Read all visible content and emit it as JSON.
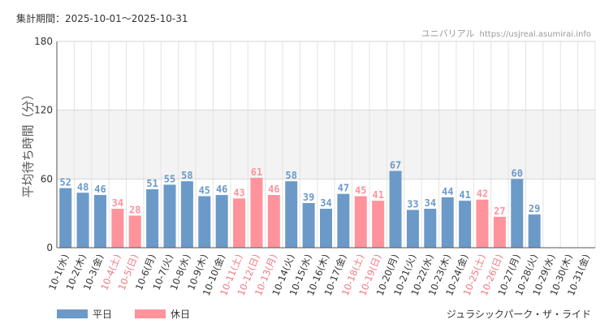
{
  "header": {
    "period": "集計期間：2025-10-01～2025-10-31",
    "site_name": "ユニバリアル",
    "site_url": "https://usjreal.asumirai.info"
  },
  "ride_name": "ジュラシックパーク・ザ・ライド",
  "colors": {
    "weekday": "#6b9ac9",
    "holiday": "#ff939b",
    "band": "#f3f3f3"
  },
  "chart_data": {
    "type": "bar",
    "ylabel": "平均待ち時間（分）",
    "ylim": [
      0,
      180
    ],
    "yticks": [
      0,
      60,
      120,
      180
    ],
    "band": [
      60,
      120
    ],
    "legend": [
      {
        "key": "weekday",
        "label": "平日"
      },
      {
        "key": "holiday",
        "label": "休日"
      }
    ],
    "categories": [
      "10-1(水)",
      "10-2(木)",
      "10-3(金)",
      "10-4(土)",
      "10-5(日)",
      "10-6(月)",
      "10-7(火)",
      "10-8(水)",
      "10-9(木)",
      "10-10(金)",
      "10-11(土)",
      "10-12(日)",
      "10-13(月)",
      "10-14(火)",
      "10-15(水)",
      "10-16(木)",
      "10-17(金)",
      "10-18(土)",
      "10-19(日)",
      "10-20(月)",
      "10-21(火)",
      "10-22(水)",
      "10-23(木)",
      "10-24(金)",
      "10-25(土)",
      "10-26(日)",
      "10-27(月)",
      "10-28(火)",
      "10-29(水)",
      "10-30(木)",
      "10-31(金)"
    ],
    "values": [
      52,
      48,
      46,
      34,
      28,
      51,
      55,
      58,
      45,
      46,
      43,
      61,
      46,
      58,
      39,
      34,
      47,
      45,
      41,
      67,
      33,
      34,
      44,
      41,
      42,
      27,
      60,
      29,
      null,
      null,
      null
    ],
    "day_type": [
      "weekday",
      "weekday",
      "weekday",
      "holiday",
      "holiday",
      "weekday",
      "weekday",
      "weekday",
      "weekday",
      "weekday",
      "holiday",
      "holiday",
      "holiday",
      "weekday",
      "weekday",
      "weekday",
      "weekday",
      "holiday",
      "holiday",
      "weekday",
      "weekday",
      "weekday",
      "weekday",
      "weekday",
      "holiday",
      "holiday",
      "weekday",
      "weekday",
      "weekday",
      "weekday",
      "weekday"
    ]
  }
}
